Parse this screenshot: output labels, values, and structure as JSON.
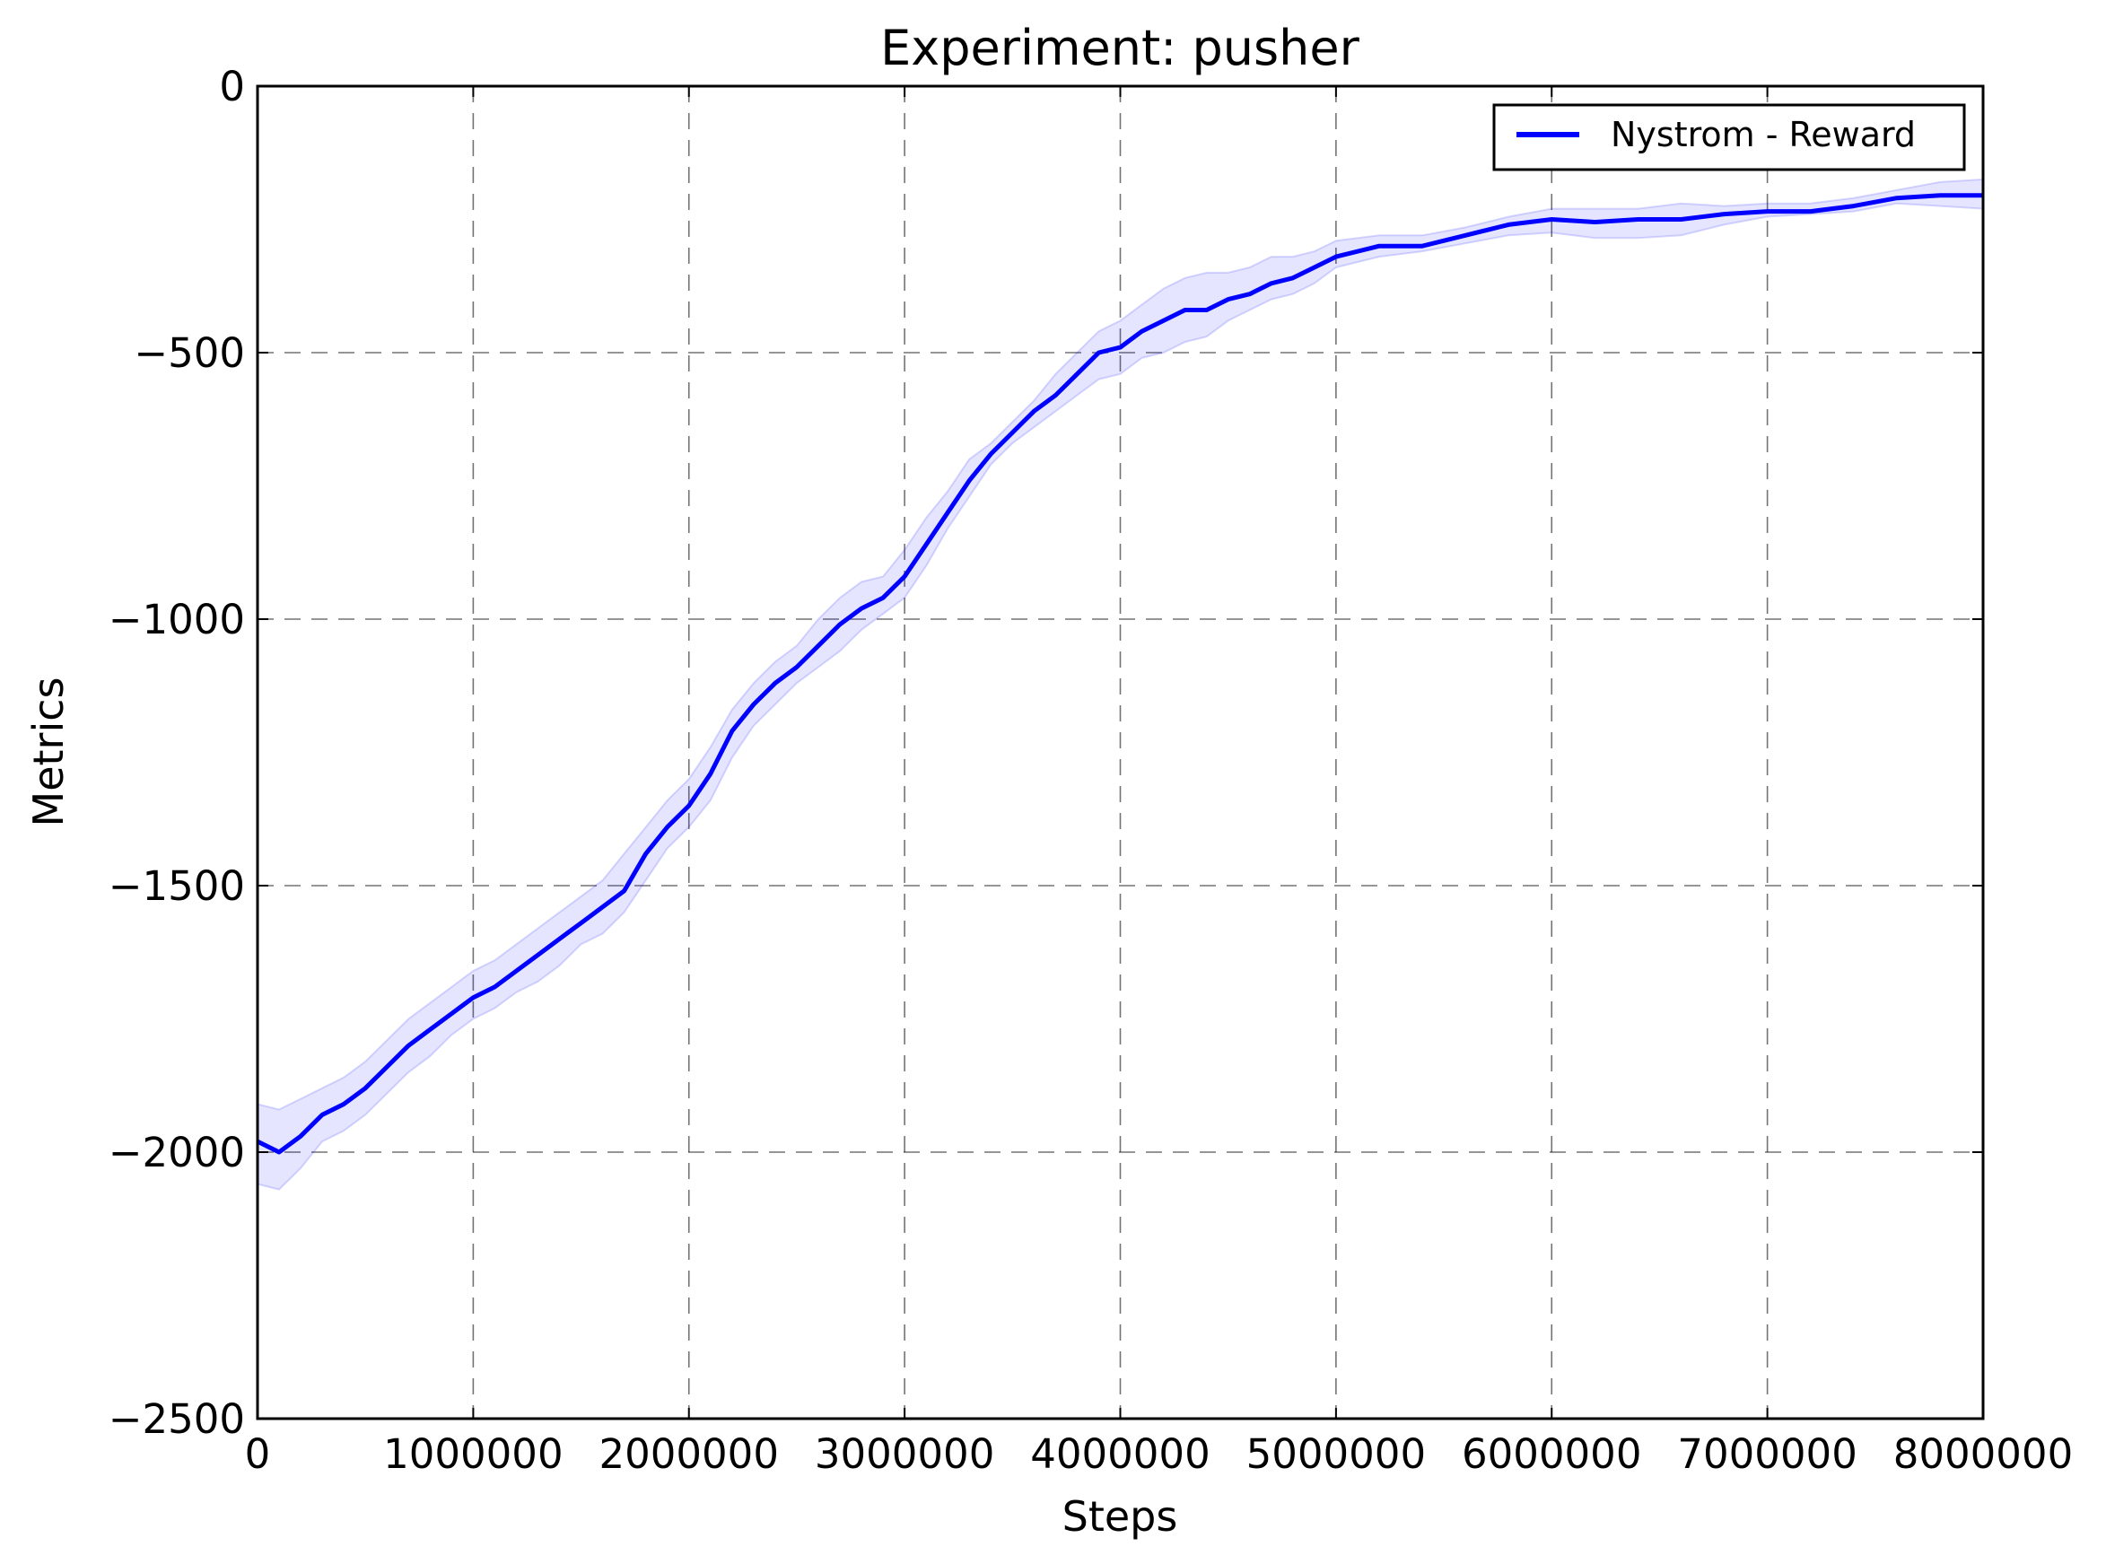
{
  "chart_data": {
    "type": "line",
    "title": "Experiment: pusher",
    "xlabel": "Steps",
    "ylabel": "Metrics",
    "xlim": [
      0,
      8000000
    ],
    "ylim": [
      -2500,
      0
    ],
    "x_ticks": [
      0,
      1000000,
      2000000,
      3000000,
      4000000,
      5000000,
      6000000,
      7000000,
      8000000
    ],
    "y_ticks": [
      0,
      -500,
      -1000,
      -1500,
      -2000,
      -2500
    ],
    "x_tick_labels": [
      "0",
      "1000000",
      "2000000",
      "3000000",
      "4000000",
      "5000000",
      "6000000",
      "7000000",
      "8000000"
    ],
    "y_tick_labels": [
      "0",
      "−500",
      "−1000",
      "−1500",
      "−2000",
      "−2500"
    ],
    "grid": true,
    "legend_position": "top-right",
    "series": [
      {
        "name": "Nystrom - Reward",
        "color": "#0000ff",
        "band_color": "#0000ff",
        "x": [
          0,
          100000,
          200000,
          300000,
          400000,
          500000,
          600000,
          700000,
          800000,
          900000,
          1000000,
          1100000,
          1200000,
          1300000,
          1400000,
          1500000,
          1600000,
          1700000,
          1800000,
          1900000,
          2000000,
          2100000,
          2200000,
          2300000,
          2400000,
          2500000,
          2600000,
          2700000,
          2800000,
          2900000,
          3000000,
          3100000,
          3200000,
          3300000,
          3400000,
          3500000,
          3600000,
          3700000,
          3800000,
          3900000,
          4000000,
          4100000,
          4200000,
          4300000,
          4400000,
          4500000,
          4600000,
          4700000,
          4800000,
          4900000,
          5000000,
          5200000,
          5400000,
          5600000,
          5800000,
          6000000,
          6200000,
          6400000,
          6600000,
          6800000,
          7000000,
          7200000,
          7400000,
          7600000,
          7800000,
          8000000
        ],
        "values": [
          -1980,
          -2000,
          -1970,
          -1930,
          -1910,
          -1880,
          -1840,
          -1800,
          -1770,
          -1740,
          -1710,
          -1690,
          -1660,
          -1630,
          -1600,
          -1570,
          -1540,
          -1510,
          -1440,
          -1390,
          -1350,
          -1290,
          -1210,
          -1160,
          -1120,
          -1090,
          -1050,
          -1010,
          -980,
          -960,
          -920,
          -860,
          -800,
          -740,
          -690,
          -650,
          -610,
          -580,
          -540,
          -500,
          -490,
          -460,
          -440,
          -420,
          -420,
          -400,
          -390,
          -370,
          -360,
          -340,
          -320,
          -300,
          -300,
          -280,
          -260,
          -250,
          -255,
          -250,
          -250,
          -240,
          -235,
          -235,
          -225,
          -210,
          -205,
          -205
        ],
        "lower": [
          -2060,
          -2070,
          -2030,
          -1980,
          -1960,
          -1930,
          -1890,
          -1850,
          -1820,
          -1780,
          -1750,
          -1730,
          -1700,
          -1680,
          -1650,
          -1610,
          -1590,
          -1550,
          -1490,
          -1430,
          -1390,
          -1340,
          -1260,
          -1200,
          -1160,
          -1120,
          -1090,
          -1060,
          -1020,
          -990,
          -960,
          -900,
          -830,
          -770,
          -710,
          -670,
          -640,
          -610,
          -580,
          -550,
          -540,
          -510,
          -500,
          -480,
          -470,
          -440,
          -420,
          -400,
          -390,
          -370,
          -340,
          -320,
          -310,
          -295,
          -280,
          -275,
          -285,
          -285,
          -280,
          -260,
          -245,
          -240,
          -235,
          -220,
          -225,
          -230
        ],
        "upper": [
          -1910,
          -1920,
          -1900,
          -1880,
          -1860,
          -1830,
          -1790,
          -1750,
          -1720,
          -1690,
          -1660,
          -1640,
          -1610,
          -1580,
          -1550,
          -1520,
          -1490,
          -1440,
          -1390,
          -1340,
          -1300,
          -1240,
          -1170,
          -1120,
          -1080,
          -1050,
          -1000,
          -960,
          -930,
          -920,
          -870,
          -810,
          -760,
          -700,
          -670,
          -630,
          -590,
          -540,
          -500,
          -460,
          -440,
          -410,
          -380,
          -360,
          -350,
          -350,
          -340,
          -320,
          -320,
          -310,
          -290,
          -280,
          -280,
          -265,
          -245,
          -230,
          -230,
          -230,
          -220,
          -225,
          -220,
          -220,
          -210,
          -195,
          -180,
          -175
        ]
      }
    ]
  }
}
